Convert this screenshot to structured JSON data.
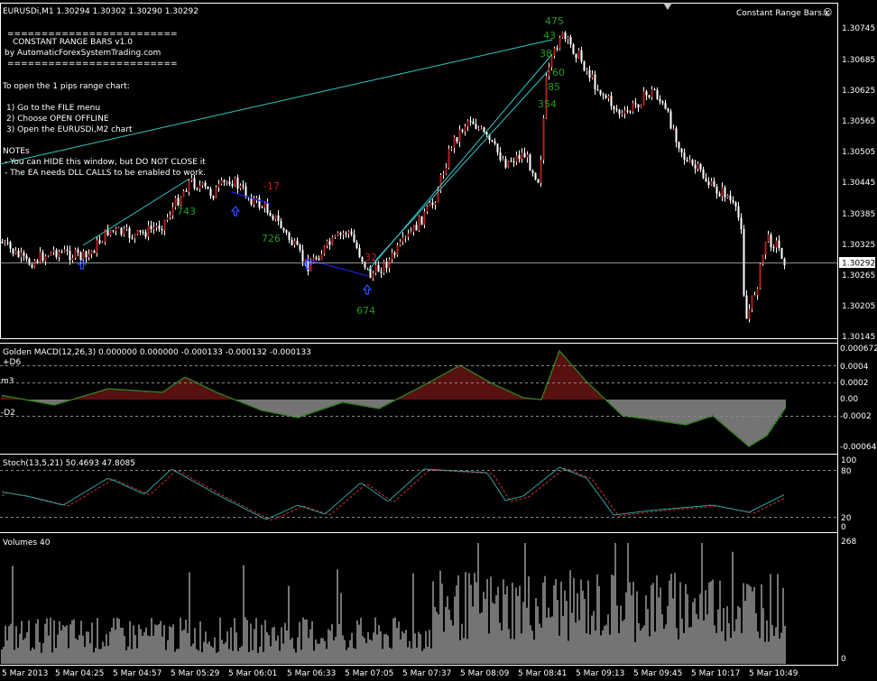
{
  "header": {
    "symbol_info": "EURUSDi,M1  1.30294 1.30302 1.30290 1.30292",
    "indicator_name": "Constant Range Bars.x",
    "smiley": "☺"
  },
  "info_panel": {
    "sep1": "=========================",
    "title": "CONSTANT RANGE BARS v1.0",
    "byline": "by AutomaticForexSystemTrading.com",
    "sep2": "=========================",
    "intro": "To open the 1 pips range chart:",
    "step1": "1) Go to the FILE menu",
    "step2": "2) Choose OPEN OFFLINE",
    "step3": "3) Open the EURUSDi,M2 chart",
    "notes_title": "NOTEs",
    "note1": "- You can HIDE this window, but DO NOT CLOSE it",
    "note2": "- The EA needs DLL CALLS to be enabled to work."
  },
  "price_axis": {
    "ticks": [
      "1.30745",
      "1.30685",
      "1.30625",
      "1.30565",
      "1.30505",
      "1.30445",
      "1.30385",
      "1.30325",
      "1.30265",
      "1.30205",
      "1.30145"
    ],
    "current": "1.30292"
  },
  "chart_labels": {
    "green": [
      "475",
      "43",
      "38",
      "60",
      "85",
      "354",
      "743",
      "726",
      "674"
    ],
    "red": [
      "-17",
      "32"
    ]
  },
  "macd": {
    "title": "Golden MACD(12,26,3) 0.000000 0.000000 -0.000133 -0.000132 -0.000133",
    "label_d6": "+D6",
    "label_m3": "m3",
    "label_d2": "-D2",
    "axis": [
      "0.000672",
      "0.0004",
      "0.0002",
      "0.00",
      "-0.0002",
      "-0.00064"
    ]
  },
  "stoch": {
    "title": "Stoch(13,5,21) 50.4693 47.8085",
    "axis": [
      "100",
      "80",
      "20",
      "0"
    ]
  },
  "volumes": {
    "title": "Volumes 40",
    "axis": [
      "268",
      "0"
    ]
  },
  "time_axis": [
    "5 Mar 2013",
    "5 Mar 04:25",
    "5 Mar 04:57",
    "5 Mar 05:29",
    "5 Mar 06:01",
    "5 Mar 06:33",
    "5 Mar 07:05",
    "5 Mar 07:37",
    "5 Mar 08:09",
    "5 Mar 08:41",
    "5 Mar 09:13",
    "5 Mar 09:45",
    "5 Mar 10:17",
    "5 Mar 10:49"
  ],
  "colors": {
    "candle_up": "#b02020",
    "candle_body": "#ffffff",
    "wick": "#ffffff",
    "trendline": "#30c8c8",
    "zigzag": "#2020e0",
    "macd_up": "#b02020",
    "macd_down": "#2e7d1e",
    "stoch_main": "#2e9e9e",
    "stoch_signal": "#d03030",
    "grid": "#ffffff",
    "label_green": "#1e9e1e",
    "label_red": "#d01818"
  }
}
